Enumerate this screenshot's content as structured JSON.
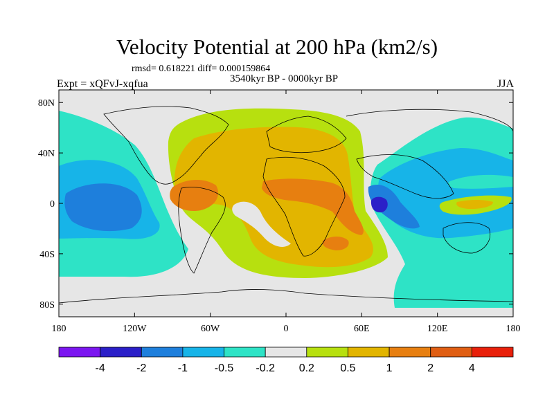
{
  "header": {
    "title": "Velocity Potential at 200 hPa (km2/s)",
    "stats": "rmsd= 0.618221 diff= 0.000159864",
    "period": "3540kyr BP - 0000kyr BP",
    "experiment": "Expt = xQFvJ-xqfua",
    "season": "JJA"
  },
  "map": {
    "x_axis": {
      "range": [
        -180,
        180
      ],
      "tick_values": [
        -180,
        -120,
        -60,
        0,
        60,
        120,
        180
      ],
      "tick_labels": [
        "180",
        "120W",
        "60W",
        "0",
        "60E",
        "120E",
        "180"
      ]
    },
    "y_axis": {
      "range": [
        -90,
        90
      ],
      "tick_values": [
        80,
        40,
        0,
        -40,
        -80
      ],
      "tick_labels": [
        "80N",
        "40N",
        "0",
        "40S",
        "80S"
      ]
    },
    "colors": {
      "background": "#e6e6e6",
      "neg4": "#2b1fc8",
      "neg2": "#1e7fdc",
      "neg1": "#17b4e8",
      "neg05": "#2ee3c6",
      "pos02": "#b7e00f",
      "pos05": "#e2b500",
      "pos1": "#e77f10",
      "pos2": "#e05e13"
    }
  },
  "colorbar": {
    "colors": [
      "#7b16f0",
      "#2b1fc8",
      "#1e7fdc",
      "#17b4e8",
      "#2ee3c6",
      "#e6e6e6",
      "#b7e00f",
      "#e2b500",
      "#e77f10",
      "#e05e13",
      "#e8200b"
    ],
    "labels": [
      "-4",
      "-2",
      "-1",
      "-0.5",
      "-0.2",
      "0.2",
      "0.5",
      "1",
      "2",
      "4"
    ]
  }
}
